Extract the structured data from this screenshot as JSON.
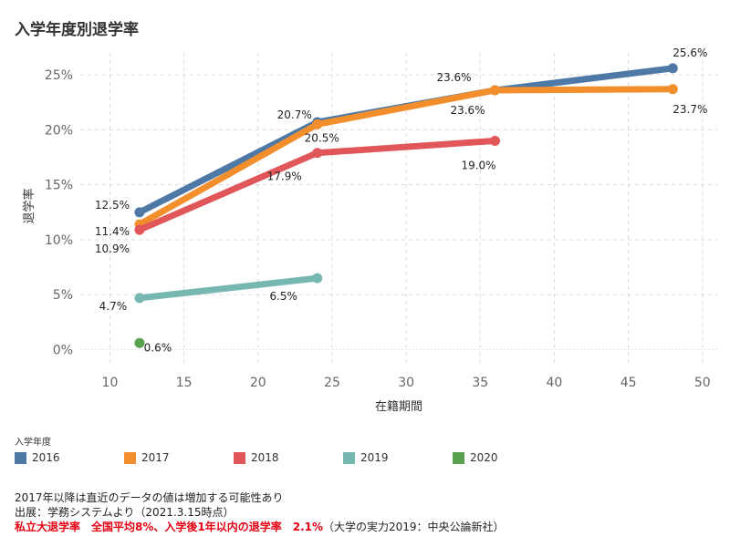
{
  "chart_data": {
    "type": "line",
    "title": "入学年度別退学率",
    "xlabel": "在籍期間",
    "ylabel": "退学率",
    "xlim": [
      8,
      51
    ],
    "ylim": [
      -1.2,
      27
    ],
    "x_ticks": [
      "10",
      "15",
      "20",
      "25",
      "30",
      "35",
      "40",
      "45",
      "50"
    ],
    "y_ticks": [
      "0%",
      "5%",
      "10%",
      "15%",
      "20%",
      "25%"
    ],
    "grid": true,
    "legend_title": "入学年度",
    "legend_position": "bottom",
    "series": [
      {
        "name": "2016",
        "color": "#4e79a7",
        "x": [
          12,
          24,
          36,
          48
        ],
        "values": [
          12.5,
          20.7,
          23.6,
          25.6
        ],
        "labels": [
          "12.5%",
          "20.7%",
          "23.6%",
          "25.6%"
        ]
      },
      {
        "name": "2017",
        "color": "#f28e2b",
        "x": [
          12,
          24,
          36,
          48
        ],
        "values": [
          11.4,
          20.5,
          23.6,
          23.7
        ],
        "labels": [
          "11.4%",
          "20.5%",
          "23.6%",
          "23.7%"
        ]
      },
      {
        "name": "2018",
        "color": "#e15759",
        "x": [
          12,
          24,
          36
        ],
        "values": [
          10.9,
          17.9,
          19.0
        ],
        "labels": [
          "10.9%",
          "17.9%",
          "19.0%"
        ]
      },
      {
        "name": "2019",
        "color": "#76b7b2",
        "x": [
          12,
          24
        ],
        "values": [
          4.7,
          6.5
        ],
        "labels": [
          "4.7%",
          "6.5%"
        ]
      },
      {
        "name": "2020",
        "color": "#59a14f",
        "x": [
          12
        ],
        "values": [
          0.6
        ],
        "labels": [
          "0.6%"
        ]
      }
    ]
  },
  "notes": {
    "line1": "2017年以降は直近のデータの値は増加する可能性あり",
    "line2": "出展：学務システムより（2021.3.15時点）",
    "line3_red": "私立大退学率　全国平均8%、入学後1年以内の退学率　2.1%",
    "line3_rest": "（大学の実力2019：中央公論新社）"
  }
}
